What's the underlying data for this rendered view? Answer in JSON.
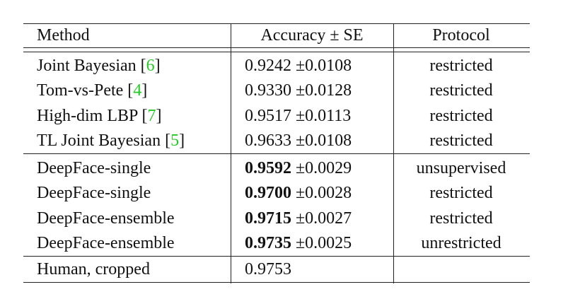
{
  "table": {
    "header": [
      "Method",
      "Accuracy ± SE",
      "Protocol"
    ],
    "groups": [
      [
        {
          "method": "Joint Bayesian",
          "cite": [
            "[",
            "6",
            "]"
          ],
          "accuracy": "0.9242",
          "se": "±0.0108",
          "protocol": "restricted"
        },
        {
          "method": "Tom-vs-Pete",
          "cite": [
            "[",
            "4",
            "]"
          ],
          "accuracy": "0.9330",
          "se": "±0.0128",
          "protocol": "restricted"
        },
        {
          "method": "High-dim LBP",
          "cite": [
            "[",
            "7",
            "]"
          ],
          "accuracy": "0.9517",
          "se": "±0.0113",
          "protocol": "restricted"
        },
        {
          "method": "TL Joint Bayesian",
          "cite": [
            "[",
            "5",
            "]"
          ],
          "accuracy": "0.9633",
          "se": "±0.0108",
          "protocol": "restricted"
        }
      ],
      [
        {
          "method": "DeepFace-single",
          "accuracy": "0.9592",
          "bold": true,
          "se": "±0.0029",
          "protocol": "unsupervised"
        },
        {
          "method": "DeepFace-single",
          "accuracy": "0.9700",
          "bold": true,
          "se": "±0.0028",
          "protocol": "restricted"
        },
        {
          "method": "DeepFace-ensemble",
          "accuracy": "0.9715",
          "bold": true,
          "se": "±0.0027",
          "protocol": "restricted"
        },
        {
          "method": "DeepFace-ensemble",
          "accuracy": "0.9735",
          "bold": true,
          "se": "±0.0025",
          "protocol": "unrestricted"
        }
      ],
      [
        {
          "method": "Human, cropped",
          "accuracy": "0.9753"
        }
      ]
    ]
  }
}
